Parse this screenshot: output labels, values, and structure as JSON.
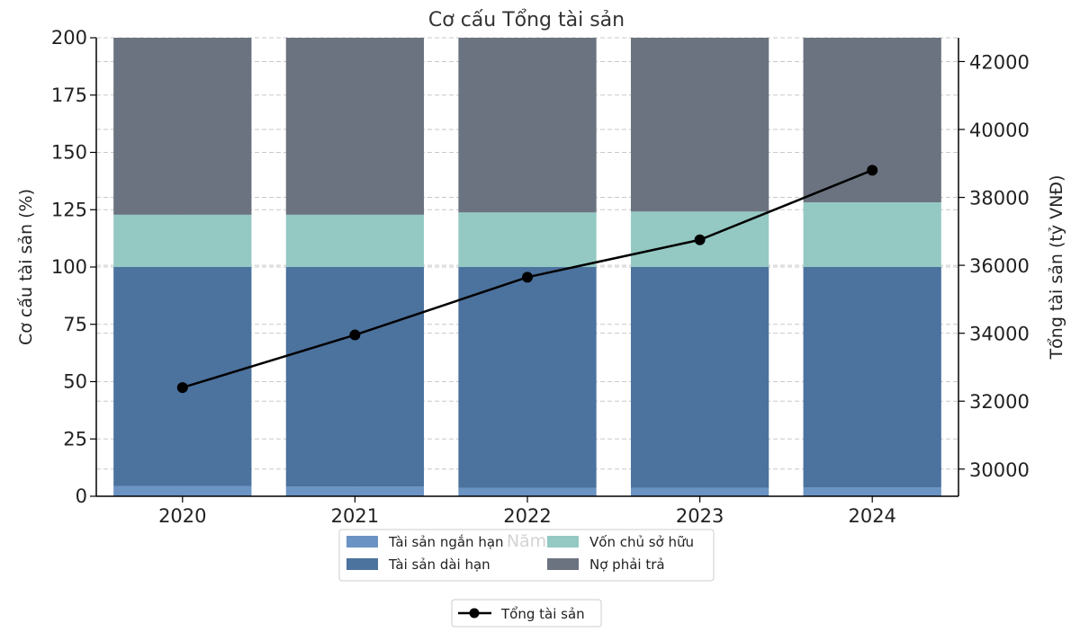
{
  "chart_data": {
    "type": "bar",
    "stacked": true,
    "title": "Cơ cấu Tổng tài sản",
    "xlabel": "Năm",
    "ylabel": "Cơ cấu tài sản (%)",
    "y2label": "Tổng tài sản (tỷ VNĐ)",
    "categories": [
      "2020",
      "2021",
      "2022",
      "2023",
      "2024"
    ],
    "ylim": [
      0,
      200
    ],
    "yticks": [
      0,
      25,
      50,
      75,
      100,
      125,
      150,
      175,
      200
    ],
    "y2lim": [
      29200,
      42700
    ],
    "y2ticks": [
      30000,
      32000,
      34000,
      36000,
      38000,
      40000,
      42000
    ],
    "series": [
      {
        "name": "Tài sản ngắn hạn",
        "color": "#6b93c3",
        "values": [
          4.5,
          4.2,
          3.6,
          3.7,
          3.8
        ]
      },
      {
        "name": "Tài sản dài hạn",
        "color": "#4c729e",
        "values": [
          95.5,
          95.8,
          96.4,
          96.3,
          96.2
        ]
      },
      {
        "name": "Vốn chủ sở hữu",
        "color": "#94c9c3",
        "values": [
          22.8,
          22.8,
          23.8,
          24.2,
          28.2
        ]
      },
      {
        "name": "Nợ phải trả",
        "color": "#6b7380",
        "values": [
          77.2,
          77.2,
          76.2,
          75.8,
          71.8
        ]
      }
    ],
    "line_series": {
      "name": "Tổng tài sản",
      "axis": "right",
      "color": "#000000",
      "values": [
        32400,
        33950,
        35650,
        36750,
        38800
      ]
    },
    "grid": true,
    "legend_position": "bottom"
  }
}
